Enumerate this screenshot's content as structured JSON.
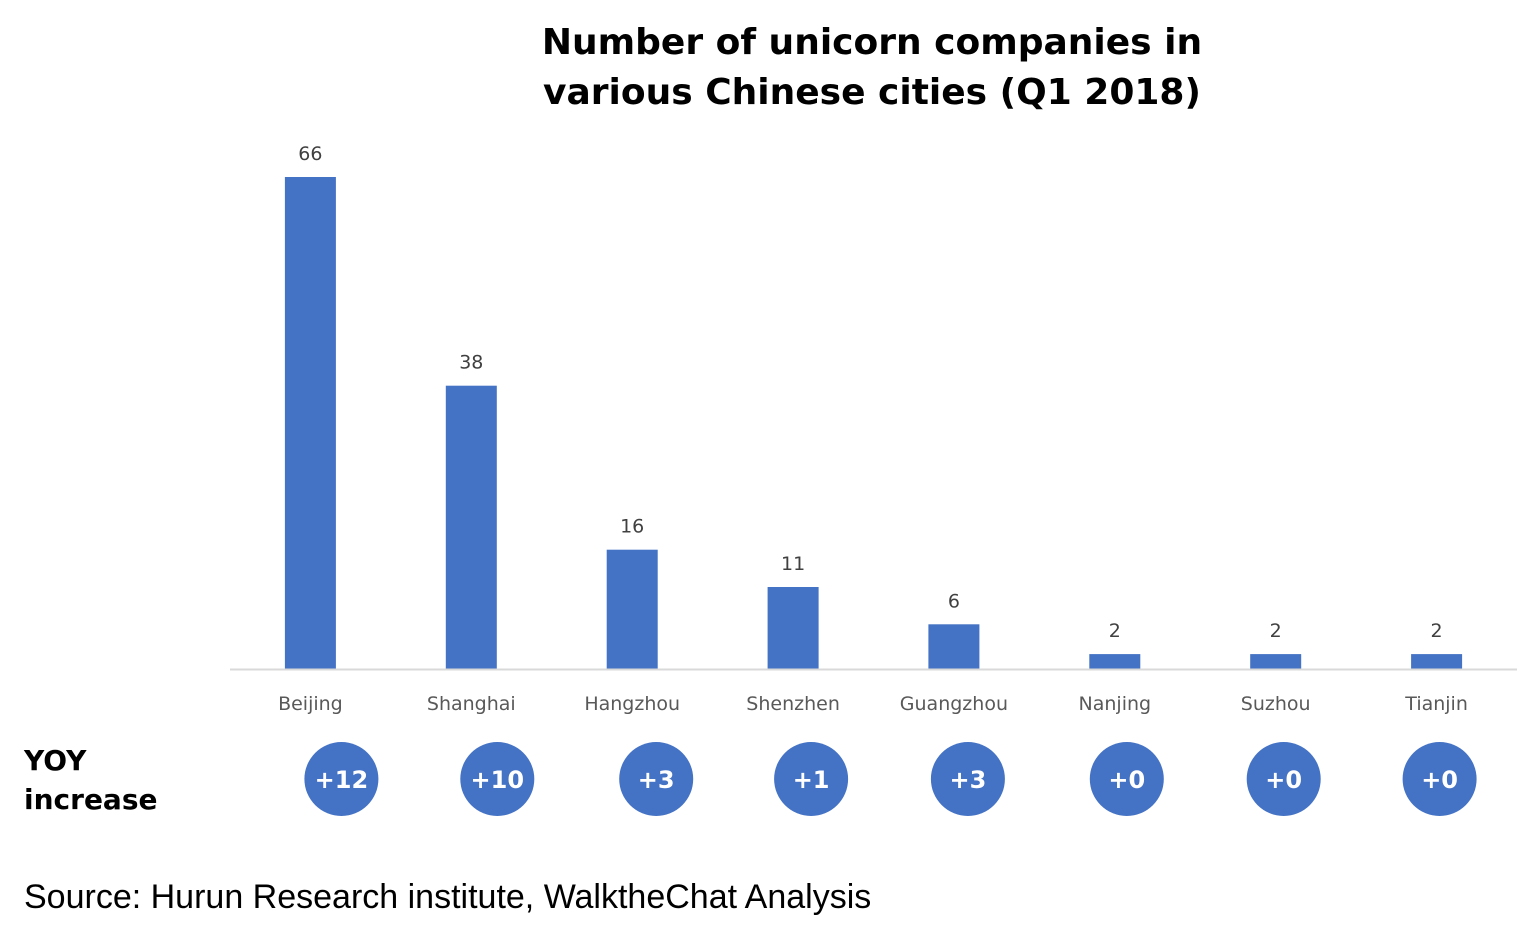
{
  "chart_data": {
    "type": "bar",
    "title": "Number of unicorn companies in various Chinese cities (Q1 2018)",
    "title_lines": [
      "Number of unicorn companies in",
      "various Chinese cities (Q1 2018)"
    ],
    "categories": [
      "Beijing",
      "Shanghai",
      "Hangzhou",
      "Shenzhen",
      "Guangzhou",
      "Nanjing",
      "Suzhou",
      "Tianjin"
    ],
    "values": [
      66,
      38,
      16,
      11,
      6,
      2,
      2,
      2
    ],
    "ylim": [
      0,
      66
    ],
    "xlabel": "",
    "ylabel": "",
    "grid": false,
    "bar_color": "#4472C4",
    "yoy": {
      "label_lines": [
        "YOY",
        "increase"
      ],
      "values": [
        "+12",
        "+10",
        "+3",
        "+1",
        "+3",
        "+0",
        "+0",
        "+0"
      ],
      "badge_color": "#4472C4"
    }
  },
  "source": "Source: Hurun Research institute, WalktheChat Analysis"
}
